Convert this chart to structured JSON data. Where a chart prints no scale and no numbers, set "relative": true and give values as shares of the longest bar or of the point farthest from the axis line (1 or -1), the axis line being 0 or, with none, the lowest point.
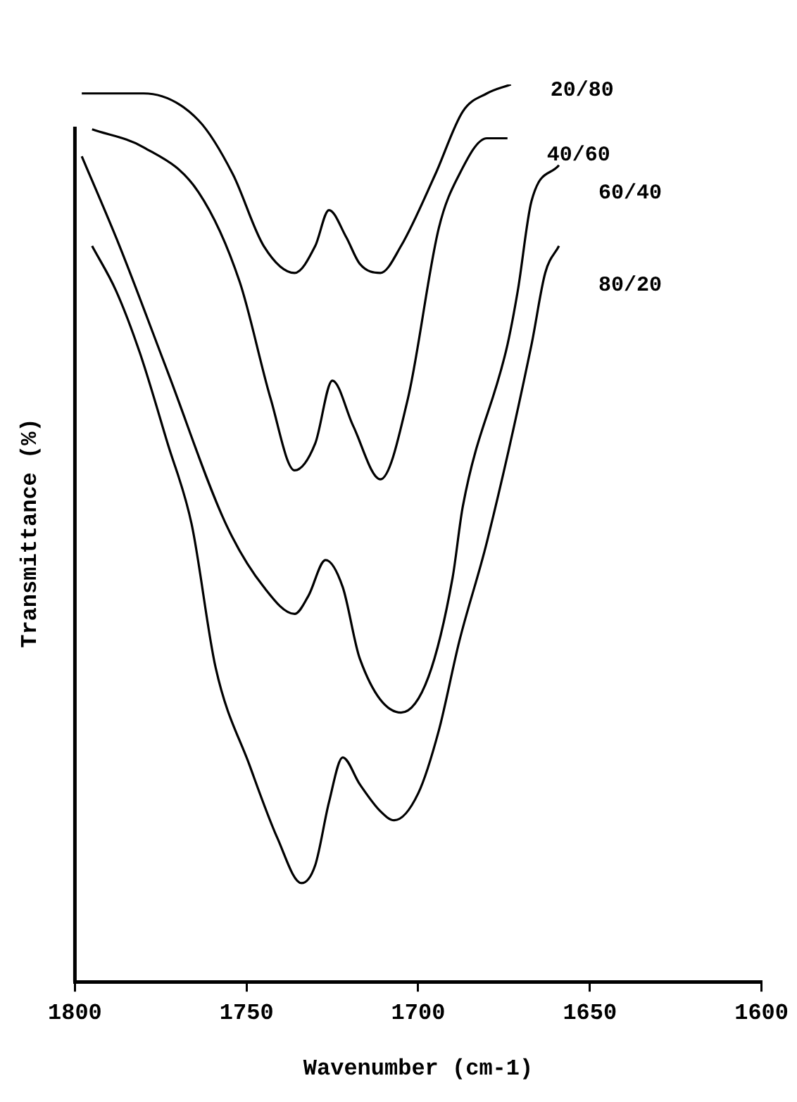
{
  "chart_data": {
    "type": "line",
    "xlabel": "Wavenumber (cm-1)",
    "ylabel": "Transmittance (%)",
    "relative": true,
    "xlim": [
      1800,
      1600
    ],
    "xticks": [
      1800,
      1750,
      1700,
      1650,
      1600
    ],
    "legend": false,
    "marker": "none",
    "line_style": "solid",
    "series": [
      {
        "name": "20/80",
        "color": "#000000",
        "x": [
          1798,
          1790,
          1780,
          1764,
          1754,
          1745,
          1736,
          1730,
          1726,
          1721,
          1717,
          1711,
          1705,
          1695,
          1687,
          1680,
          1673
        ],
        "values": [
          0.99,
          0.99,
          0.99,
          0.96,
          0.9,
          0.82,
          0.79,
          0.82,
          0.86,
          0.83,
          0.8,
          0.79,
          0.82,
          0.9,
          0.97,
          0.99,
          1.0
        ]
      },
      {
        "name": "40/60",
        "color": "#000000",
        "x": [
          1795,
          1780,
          1764,
          1752,
          1743,
          1736,
          1730,
          1725,
          1719,
          1711,
          1703,
          1694,
          1688,
          1680,
          1674
        ],
        "values": [
          0.95,
          0.93,
          0.88,
          0.78,
          0.65,
          0.57,
          0.6,
          0.67,
          0.62,
          0.56,
          0.65,
          0.84,
          0.9,
          0.94,
          0.94
        ]
      },
      {
        "name": "60/40",
        "color": "#000000",
        "x": [
          1798,
          1787,
          1773,
          1756,
          1745,
          1736,
          1732,
          1727,
          1722,
          1717,
          1705,
          1697,
          1690,
          1687,
          1674,
          1671,
          1667,
          1659
        ],
        "values": [
          0.92,
          0.82,
          0.68,
          0.51,
          0.44,
          0.41,
          0.43,
          0.47,
          0.44,
          0.36,
          0.3,
          0.34,
          0.45,
          0.53,
          0.71,
          0.77,
          0.87,
          0.91
        ]
      },
      {
        "name": "80/20",
        "color": "#000000",
        "x": [
          1795,
          1788,
          1781,
          1773,
          1766,
          1759,
          1749,
          1741,
          1734,
          1730,
          1726,
          1722,
          1717,
          1711,
          1707,
          1700,
          1694,
          1688,
          1680,
          1667,
          1663,
          1659
        ],
        "values": [
          0.82,
          0.77,
          0.7,
          0.6,
          0.51,
          0.35,
          0.24,
          0.16,
          0.11,
          0.13,
          0.2,
          0.25,
          0.22,
          0.19,
          0.18,
          0.21,
          0.28,
          0.38,
          0.49,
          0.71,
          0.79,
          0.82
        ]
      }
    ]
  }
}
